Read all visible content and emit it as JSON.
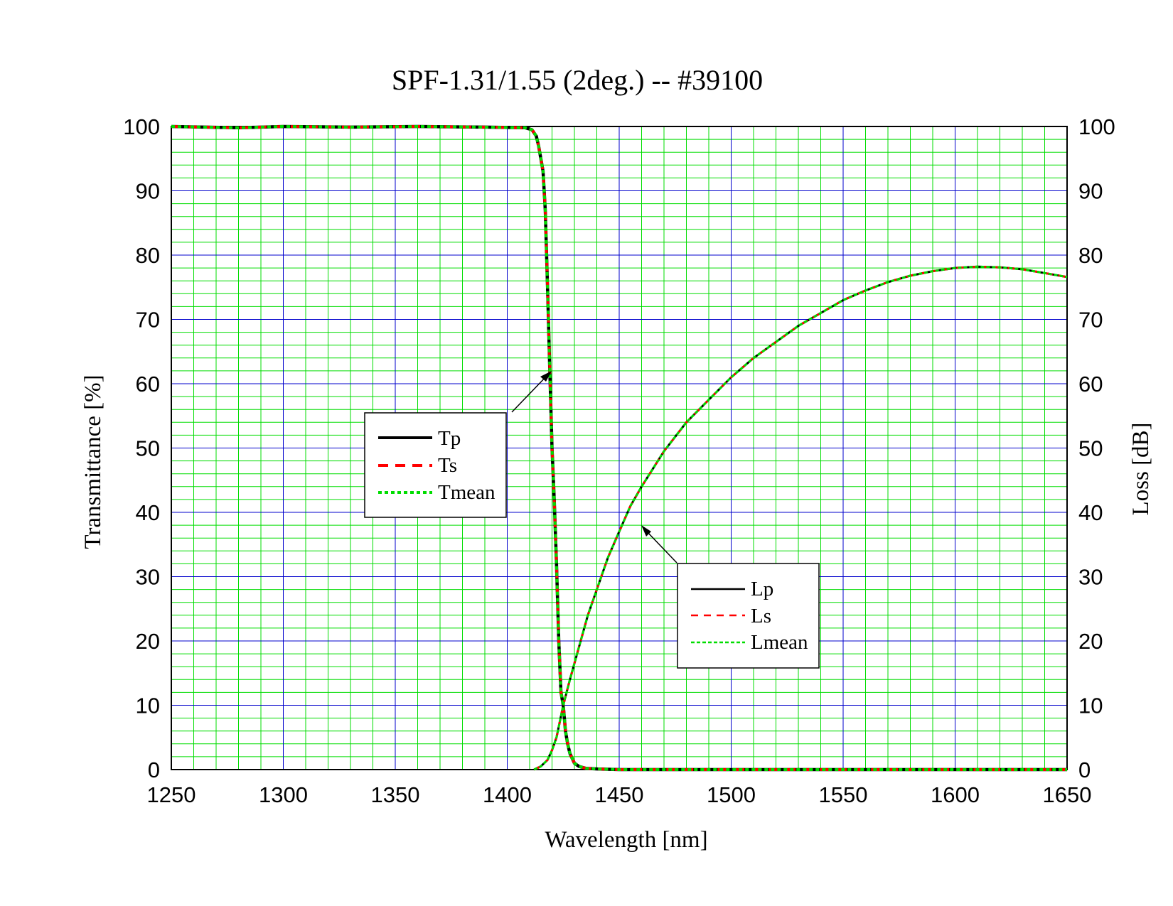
{
  "chart_data": {
    "type": "line",
    "title": "SPF-1.31/1.55 (2deg.)  --  #39100",
    "xlabel": "Wavelength [nm]",
    "ylabel_left": "Transmittance [%]",
    "ylabel_right": "Loss [dB]",
    "xlim": [
      1250,
      1650
    ],
    "ylim_left": [
      0,
      100
    ],
    "ylim_right": [
      0,
      100
    ],
    "x_ticks": [
      "1250",
      "1300",
      "1350",
      "1400",
      "1450",
      "1500",
      "1550",
      "1600",
      "1650"
    ],
    "y_ticks": [
      "0",
      "10",
      "20",
      "30",
      "40",
      "50",
      "60",
      "70",
      "80",
      "90",
      "100"
    ],
    "grid": true,
    "colors": {
      "Tp": "#000000",
      "Ts": "#ff0000",
      "Tmean": "#00dd00",
      "grid_minor": "#00dd00",
      "grid_major": "#0000cc"
    },
    "legend_transmittance": [
      "Tp",
      "Ts",
      "Tmean"
    ],
    "legend_loss": [
      "Lp",
      "Ls",
      "Lmean"
    ],
    "series": [
      {
        "name": "Tp",
        "axis": "left",
        "x": [
          1250,
          1280,
          1300,
          1330,
          1360,
          1390,
          1408,
          1411,
          1413,
          1414,
          1415,
          1416,
          1417,
          1418,
          1419,
          1420,
          1421,
          1422,
          1423,
          1424,
          1425,
          1426,
          1427,
          1428,
          1430,
          1432,
          1435,
          1440,
          1450,
          1500,
          1550,
          1600,
          1650
        ],
        "y": [
          100,
          99.8,
          100,
          99.9,
          100,
          99.9,
          99.8,
          99.5,
          98.5,
          97,
          95,
          93,
          87,
          75,
          62,
          50,
          42,
          32,
          20,
          12,
          10,
          6,
          4,
          2.5,
          1,
          0.5,
          0.2,
          0.1,
          0,
          0,
          0,
          0,
          0
        ]
      },
      {
        "name": "Ts",
        "axis": "left",
        "x": [
          1250,
          1280,
          1300,
          1330,
          1360,
          1390,
          1408,
          1411,
          1413,
          1414,
          1415,
          1416,
          1417,
          1418,
          1419,
          1420,
          1421,
          1422,
          1423,
          1424,
          1425,
          1426,
          1427,
          1428,
          1430,
          1432,
          1435,
          1440,
          1450,
          1500,
          1550,
          1600,
          1650
        ],
        "y": [
          100,
          99.8,
          100,
          99.9,
          100,
          99.9,
          99.8,
          99.5,
          98.5,
          97,
          95,
          93,
          87,
          75,
          62,
          50,
          42,
          32,
          20,
          12,
          10,
          6,
          4,
          2.5,
          1,
          0.5,
          0.2,
          0.1,
          0,
          0,
          0,
          0,
          0
        ]
      },
      {
        "name": "Tmean",
        "axis": "left",
        "x": [
          1250,
          1280,
          1300,
          1330,
          1360,
          1390,
          1408,
          1411,
          1413,
          1414,
          1415,
          1416,
          1417,
          1418,
          1419,
          1420,
          1421,
          1422,
          1423,
          1424,
          1425,
          1426,
          1427,
          1428,
          1430,
          1432,
          1435,
          1440,
          1450,
          1500,
          1550,
          1600,
          1650
        ],
        "y": [
          100,
          99.8,
          100,
          99.9,
          100,
          99.9,
          99.8,
          99.5,
          98.5,
          97,
          95,
          93,
          87,
          75,
          62,
          50,
          42,
          32,
          20,
          12,
          10,
          6,
          4,
          2.5,
          1,
          0.5,
          0.2,
          0.1,
          0,
          0,
          0,
          0,
          0
        ]
      },
      {
        "name": "Lp",
        "axis": "right",
        "x": [
          1412,
          1415,
          1418,
          1420,
          1422,
          1425,
          1428,
          1432,
          1436,
          1440,
          1445,
          1450,
          1455,
          1460,
          1470,
          1480,
          1490,
          1500,
          1510,
          1520,
          1530,
          1540,
          1550,
          1560,
          1570,
          1580,
          1590,
          1600,
          1610,
          1620,
          1630,
          1640,
          1650
        ],
        "y": [
          0,
          0.5,
          1.5,
          3,
          5,
          10,
          14,
          19,
          24,
          28,
          33,
          37,
          41,
          44,
          49.5,
          54,
          57.5,
          61,
          64,
          66.5,
          69,
          71,
          73,
          74.5,
          75.8,
          76.8,
          77.5,
          78,
          78.2,
          78.1,
          77.8,
          77.2,
          76.6
        ]
      },
      {
        "name": "Ls",
        "axis": "right",
        "x": [
          1412,
          1415,
          1418,
          1420,
          1422,
          1425,
          1428,
          1432,
          1436,
          1440,
          1445,
          1450,
          1455,
          1460,
          1470,
          1480,
          1490,
          1500,
          1510,
          1520,
          1530,
          1540,
          1550,
          1560,
          1570,
          1580,
          1590,
          1600,
          1610,
          1620,
          1630,
          1640,
          1650
        ],
        "y": [
          0,
          0.5,
          1.5,
          3,
          5,
          10,
          14,
          19,
          24,
          28,
          33,
          37,
          41,
          44,
          49.5,
          54,
          57.5,
          61,
          64,
          66.5,
          69,
          71,
          73,
          74.5,
          75.8,
          76.8,
          77.5,
          78,
          78.2,
          78.1,
          77.8,
          77.2,
          76.6
        ]
      },
      {
        "name": "Lmean",
        "axis": "right",
        "x": [
          1412,
          1415,
          1418,
          1420,
          1422,
          1425,
          1428,
          1432,
          1436,
          1440,
          1445,
          1450,
          1455,
          1460,
          1470,
          1480,
          1490,
          1500,
          1510,
          1520,
          1530,
          1540,
          1550,
          1560,
          1570,
          1580,
          1590,
          1600,
          1610,
          1620,
          1630,
          1640,
          1650
        ],
        "y": [
          0,
          0.5,
          1.5,
          3,
          5,
          10,
          14,
          19,
          24,
          28,
          33,
          37,
          41,
          44,
          49.5,
          54,
          57.5,
          61,
          64,
          66.5,
          69,
          71,
          73,
          74.5,
          75.8,
          76.8,
          77.5,
          78,
          78.2,
          78.1,
          77.8,
          77.2,
          76.6
        ]
      }
    ]
  }
}
